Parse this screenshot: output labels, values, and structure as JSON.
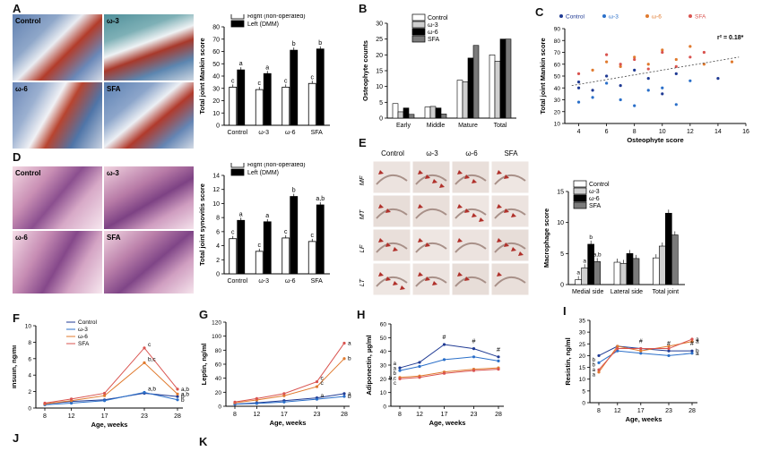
{
  "panel_labels": {
    "A": "A",
    "B": "B",
    "C": "C",
    "D": "D",
    "E": "E",
    "F": "F",
    "G": "G",
    "H": "H",
    "I": "I",
    "J": "J",
    "K": "K"
  },
  "histology": {
    "A": [
      "Control",
      "ω-3",
      "ω-6",
      "SFA"
    ],
    "D": [
      "Control",
      "ω-3",
      "ω-6",
      "SFA"
    ],
    "E_cols": [
      "Control",
      "ω-3",
      "ω-6",
      "SFA"
    ],
    "E_rows": [
      "MF",
      "MT",
      "LF",
      "LT"
    ]
  },
  "colors": {
    "right_bar": "#ffffff",
    "left_bar": "#000000",
    "control": "#1f3a93",
    "w3": "#2a6fc9",
    "w6": "#e07a2e",
    "sfa": "#d9534f",
    "grey_light": "#cfcfcf",
    "grey_dark": "#7a7a7a"
  },
  "chart_data": [
    {
      "id": "A",
      "type": "bar",
      "ylabel": "Total joint Mankin score",
      "ylim": [
        0,
        80
      ],
      "yticks": [
        0,
        10,
        20,
        30,
        40,
        50,
        60,
        70,
        80
      ],
      "categories": [
        "Control",
        "ω-3",
        "ω-6",
        "SFA"
      ],
      "series": [
        {
          "name": "Right (non-operated)",
          "values": [
            31,
            29,
            31,
            34
          ],
          "letters": [
            "c",
            "c",
            "c",
            "c"
          ]
        },
        {
          "name": "Left (DMM)",
          "values": [
            45,
            42,
            61,
            62
          ],
          "letters": [
            "a",
            "a",
            "b",
            "b"
          ]
        }
      ]
    },
    {
      "id": "B",
      "type": "bar",
      "ylabel": "Osteophyte counts",
      "ylim": [
        0,
        30
      ],
      "yticks": [
        0,
        5,
        10,
        15,
        20,
        25,
        30
      ],
      "categories": [
        "Early",
        "Middle",
        "Mature",
        "Total"
      ],
      "series": [
        {
          "name": "Control",
          "values": [
            4.6,
            3.5,
            12,
            20
          ]
        },
        {
          "name": "ω-3",
          "values": [
            2,
            3.7,
            11.5,
            18
          ]
        },
        {
          "name": "ω-6",
          "values": [
            3.2,
            3.2,
            19,
            25
          ]
        },
        {
          "name": "SFA",
          "values": [
            1.2,
            1.3,
            23,
            25
          ]
        }
      ]
    },
    {
      "id": "C",
      "type": "scatter",
      "xlabel": "Osteophyte score",
      "ylabel": "Total joint Mankin score",
      "xlim": [
        3,
        16
      ],
      "ylim": [
        10,
        90
      ],
      "xticks": [
        4,
        6,
        8,
        10,
        12,
        14,
        16
      ],
      "yticks": [
        10,
        20,
        30,
        40,
        50,
        60,
        70,
        80,
        90
      ],
      "annotation": "r² = 0.18*",
      "series": [
        {
          "name": "Control",
          "points": [
            [
              4,
              40
            ],
            [
              4,
              45
            ],
            [
              5,
              38
            ],
            [
              6,
              50
            ],
            [
              7,
              42
            ],
            [
              8,
              55
            ],
            [
              9,
              48
            ],
            [
              10,
              35
            ],
            [
              11,
              52
            ],
            [
              14,
              48
            ]
          ]
        },
        {
          "name": "ω-3",
          "points": [
            [
              4,
              28
            ],
            [
              5,
              32
            ],
            [
              6,
              44
            ],
            [
              7,
              30
            ],
            [
              8,
              25
            ],
            [
              9,
              38
            ],
            [
              10,
              40
            ],
            [
              11,
              26
            ],
            [
              12,
              46
            ]
          ]
        },
        {
          "name": "ω-6",
          "points": [
            [
              5,
              55
            ],
            [
              6,
              62
            ],
            [
              7,
              58
            ],
            [
              8,
              66
            ],
            [
              9,
              60
            ],
            [
              10,
              72
            ],
            [
              11,
              64
            ],
            [
              12,
              75
            ],
            [
              13,
              60
            ],
            [
              15,
              62
            ]
          ]
        },
        {
          "name": "SFA",
          "points": [
            [
              4,
              52
            ],
            [
              6,
              68
            ],
            [
              7,
              60
            ],
            [
              8,
              64
            ],
            [
              9,
              56
            ],
            [
              10,
              70
            ],
            [
              11,
              58
            ],
            [
              12,
              66
            ],
            [
              13,
              70
            ]
          ]
        }
      ]
    },
    {
      "id": "D",
      "type": "bar",
      "ylabel": "Total joint synovitis score",
      "ylim": [
        0,
        14
      ],
      "yticks": [
        0,
        2,
        4,
        6,
        8,
        10,
        12,
        14
      ],
      "categories": [
        "Control",
        "ω-3",
        "ω-6",
        "SFA"
      ],
      "series": [
        {
          "name": "Right (non-operated)",
          "values": [
            5,
            3.2,
            5.1,
            4.6
          ],
          "letters": [
            "c",
            "c",
            "c",
            "c"
          ]
        },
        {
          "name": "Left (DMM)",
          "values": [
            7.6,
            7.4,
            11,
            9.8
          ],
          "letters": [
            "a",
            "a",
            "b",
            "a,b"
          ]
        }
      ]
    },
    {
      "id": "E",
      "type": "bar",
      "ylabel": "Macrophage score",
      "ylim": [
        0,
        15
      ],
      "yticks": [
        0,
        5,
        10,
        15
      ],
      "categories": [
        "Medial side",
        "Lateral side",
        "Total joint"
      ],
      "series": [
        {
          "name": "Control",
          "values": [
            0.8,
            3.6,
            4.3
          ],
          "letters": [
            "a",
            "",
            ""
          ]
        },
        {
          "name": "ω-3",
          "values": [
            2.7,
            3.4,
            6.2
          ],
          "letters": [
            "a",
            "",
            ""
          ]
        },
        {
          "name": "ω-6",
          "values": [
            6.5,
            5,
            11.5
          ],
          "letters": [
            "b",
            "",
            ""
          ]
        },
        {
          "name": "SFA",
          "values": [
            3.7,
            4.2,
            8
          ],
          "letters": [
            "a,b",
            "",
            ""
          ]
        }
      ]
    },
    {
      "id": "F",
      "type": "line",
      "xlabel": "Age, weeks",
      "ylabel": "Insulin, ng/ml",
      "x": [
        8,
        12,
        17,
        23,
        28
      ],
      "ylim": [
        0,
        10
      ],
      "yticks": [
        0,
        2,
        4,
        6,
        8,
        10
      ],
      "series": [
        {
          "name": "Control",
          "values": [
            0.5,
            0.8,
            1.0,
            1.8,
            1.4
          ]
        },
        {
          "name": "ω-3",
          "values": [
            0.4,
            0.6,
            0.9,
            1.9,
            1.0
          ]
        },
        {
          "name": "ω-6",
          "values": [
            0.5,
            0.9,
            1.5,
            5.5,
            1.7
          ]
        },
        {
          "name": "SFA",
          "values": [
            0.6,
            1.1,
            1.8,
            7.3,
            2.3
          ]
        }
      ],
      "end_letters": [
        "b",
        "b",
        "a,b",
        "a,b"
      ],
      "peak_letters": [
        "c",
        "b,c",
        "a,b"
      ]
    },
    {
      "id": "G",
      "type": "line",
      "xlabel": "Age, weeks",
      "ylabel": "Leptin, ng/ml",
      "x": [
        8,
        12,
        17,
        23,
        28
      ],
      "ylim": [
        0,
        120
      ],
      "yticks": [
        0,
        20,
        40,
        60,
        80,
        100,
        120
      ],
      "series": [
        {
          "name": "Control",
          "values": [
            3,
            5,
            8,
            12,
            18
          ]
        },
        {
          "name": "ω-3",
          "values": [
            3,
            4,
            6,
            10,
            14
          ]
        },
        {
          "name": "ω-6",
          "values": [
            5,
            9,
            15,
            28,
            68
          ]
        },
        {
          "name": "SFA",
          "values": [
            6,
            11,
            18,
            35,
            90
          ]
        }
      ],
      "end_letters": [
        "a",
        "b",
        "b",
        "a"
      ],
      "peak_letters": [
        "c",
        "c",
        "a"
      ]
    },
    {
      "id": "H",
      "type": "line",
      "xlabel": "Age, weeks",
      "ylabel": "Adiponectin, µg/ml",
      "x": [
        8,
        12,
        17,
        23,
        28
      ],
      "ylim": [
        0,
        60
      ],
      "yticks": [
        0,
        10,
        20,
        30,
        40,
        50,
        60
      ],
      "series": [
        {
          "name": "Control",
          "values": [
            28,
            32,
            45,
            42,
            36
          ]
        },
        {
          "name": "ω-3",
          "values": [
            26,
            29,
            34,
            36,
            33
          ]
        },
        {
          "name": "ω-6",
          "values": [
            21,
            22,
            25,
            27,
            28
          ]
        },
        {
          "name": "SFA",
          "values": [
            20,
            21,
            24,
            26,
            27
          ]
        }
      ],
      "marks": [
        "#",
        "#",
        "#"
      ],
      "start_letters": [
        "a",
        "a",
        "b",
        "b,c",
        "c"
      ]
    },
    {
      "id": "I",
      "type": "line",
      "xlabel": "Age, weeks",
      "ylabel": "Resistin, ng/ml",
      "x": [
        8,
        12,
        17,
        23,
        28
      ],
      "ylim": [
        0,
        35
      ],
      "yticks": [
        0,
        5,
        10,
        15,
        20,
        25,
        30,
        35
      ],
      "series": [
        {
          "name": "Control",
          "values": [
            20,
            24,
            23,
            22,
            22
          ]
        },
        {
          "name": "ω-3",
          "values": [
            17,
            22,
            21,
            20,
            21
          ]
        },
        {
          "name": "ω-6",
          "values": [
            13,
            24,
            22,
            24,
            26
          ]
        },
        {
          "name": "SFA",
          "values": [
            14,
            23,
            23,
            23,
            27
          ]
        }
      ],
      "end_letters": [
        "b",
        "a",
        "a",
        "a"
      ],
      "start_letters": [
        "b",
        "b",
        "a",
        "a"
      ],
      "marks": [
        "#",
        "#",
        "#"
      ]
    }
  ]
}
